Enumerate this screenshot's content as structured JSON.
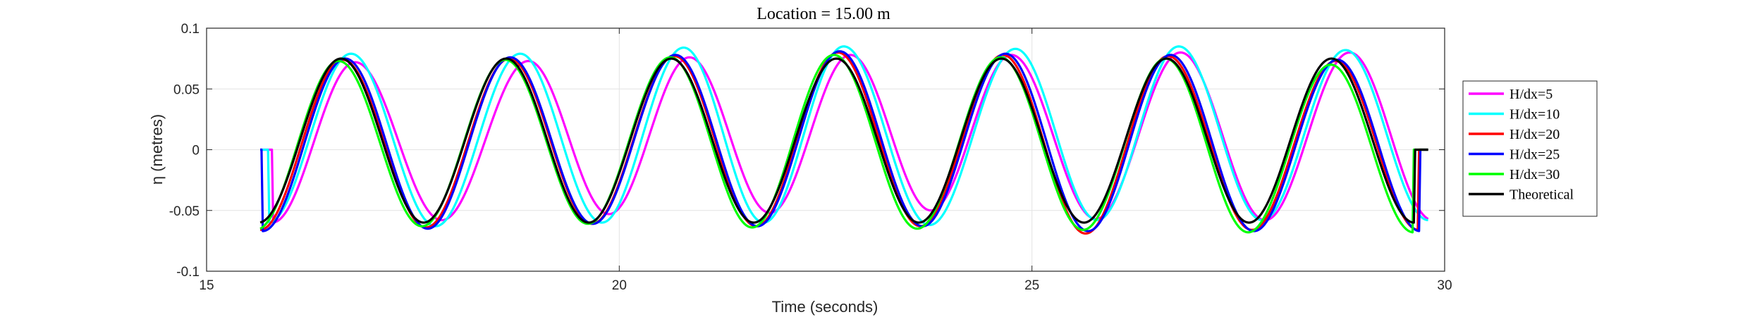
{
  "chart_data": {
    "type": "line",
    "title": "Location = 15.00 m",
    "xlabel": "Time (seconds)",
    "ylabel": "η (metres)",
    "xlim": [
      15,
      30
    ],
    "ylim": [
      -0.1,
      0.1
    ],
    "xticks": [
      15,
      20,
      25,
      30
    ],
    "xtick_labels": [
      "15",
      "20",
      "25",
      "30"
    ],
    "yticks": [
      -0.1,
      -0.05,
      0,
      0.05,
      0.1
    ],
    "ytick_labels": [
      "-0.1",
      "-0.05",
      "0",
      "0.05",
      "0.1"
    ],
    "grid": true,
    "legend_position": "right",
    "x_start": 15.65,
    "x_end": 29.8,
    "series": [
      {
        "name": "H/dx=5",
        "color": "#ff00ff",
        "t_peaks": [
          16.8,
          18.9,
          20.85,
          22.8,
          24.75,
          26.8,
          28.85
        ],
        "peak_values": [
          0.072,
          0.073,
          0.076,
          0.078,
          0.078,
          0.08,
          0.08
        ],
        "trough_values": [
          -0.06,
          -0.058,
          -0.053,
          -0.052,
          -0.05,
          -0.057,
          -0.058
        ]
      },
      {
        "name": "H/dx=10",
        "color": "#00ffff",
        "t_peaks": [
          16.75,
          18.8,
          20.78,
          22.72,
          24.8,
          26.78,
          28.8
        ],
        "peak_values": [
          0.079,
          0.079,
          0.084,
          0.085,
          0.083,
          0.085,
          0.082
        ],
        "trough_values": [
          -0.06,
          -0.063,
          -0.06,
          -0.06,
          -0.062,
          -0.058,
          -0.058
        ]
      },
      {
        "name": "H/dx=20",
        "color": "#ff0000",
        "t_peaks": [
          16.65,
          18.67,
          20.67,
          22.65,
          24.65,
          26.65,
          28.68
        ],
        "peak_values": [
          0.074,
          0.075,
          0.077,
          0.08,
          0.078,
          0.077,
          0.073
        ],
        "trough_values": [
          -0.066,
          -0.064,
          -0.061,
          -0.063,
          -0.063,
          -0.069,
          -0.066
        ]
      },
      {
        "name": "H/dx=25",
        "color": "#0000ff",
        "t_peaks": [
          16.68,
          18.68,
          20.68,
          22.67,
          24.68,
          26.68,
          28.7
        ],
        "peak_values": [
          0.075,
          0.076,
          0.078,
          0.081,
          0.079,
          0.078,
          0.074
        ],
        "trough_values": [
          -0.067,
          -0.065,
          -0.061,
          -0.063,
          -0.063,
          -0.067,
          -0.067
        ]
      },
      {
        "name": "H/dx=30",
        "color": "#00ff00",
        "t_peaks": [
          16.6,
          18.62,
          20.62,
          22.6,
          24.62,
          26.62,
          28.62
        ],
        "peak_values": [
          0.073,
          0.074,
          0.076,
          0.078,
          0.076,
          0.075,
          0.07
        ],
        "trough_values": [
          -0.066,
          -0.063,
          -0.061,
          -0.064,
          -0.065,
          -0.066,
          -0.068
        ]
      },
      {
        "name": "Theoretical",
        "color": "#000000",
        "t_peaks": [
          16.63,
          18.63,
          20.63,
          22.63,
          24.63,
          26.63,
          28.63
        ],
        "peak_values": [
          0.075,
          0.075,
          0.075,
          0.075,
          0.075,
          0.075,
          0.075
        ],
        "trough_values": [
          -0.06,
          -0.06,
          -0.06,
          -0.06,
          -0.06,
          -0.06,
          -0.06
        ]
      }
    ]
  }
}
